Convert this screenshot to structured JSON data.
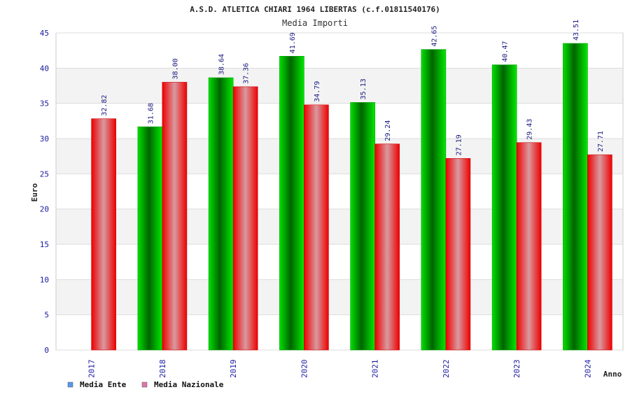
{
  "chart_data": {
    "type": "bar",
    "title": "A.S.D. ATLETICA CHIARI 1964 LIBERTAS (c.f.01811540176)",
    "subtitle": "Media Importi",
    "xlabel": "Anno",
    "ylabel": "Euro",
    "ylim": [
      0,
      45
    ],
    "yticks": [
      0,
      5,
      10,
      15,
      20,
      25,
      30,
      35,
      40,
      45
    ],
    "grid": true,
    "legend_position": "bottom-left",
    "categories": [
      "2017",
      "2018",
      "2019",
      "2020",
      "2021",
      "2022",
      "2023",
      "2024"
    ],
    "series": [
      {
        "name": "Media Ente",
        "color": "#00c000",
        "legend_color": "#5599ee",
        "values": [
          null,
          31.68,
          38.64,
          41.69,
          35.13,
          42.65,
          40.47,
          43.51
        ],
        "labels": [
          "",
          "31.68",
          "38.64",
          "41.69",
          "35.13",
          "42.65",
          "40.47",
          "43.51"
        ]
      },
      {
        "name": "Media Nazionale",
        "color": "#ee1111",
        "legend_color": "#dd77aa",
        "values": [
          32.82,
          38.0,
          37.36,
          34.79,
          29.24,
          27.19,
          29.43,
          27.71
        ],
        "labels": [
          "32.82",
          "38.00",
          "37.36",
          "34.79",
          "29.24",
          "27.19",
          "29.43",
          "27.71"
        ]
      }
    ]
  }
}
